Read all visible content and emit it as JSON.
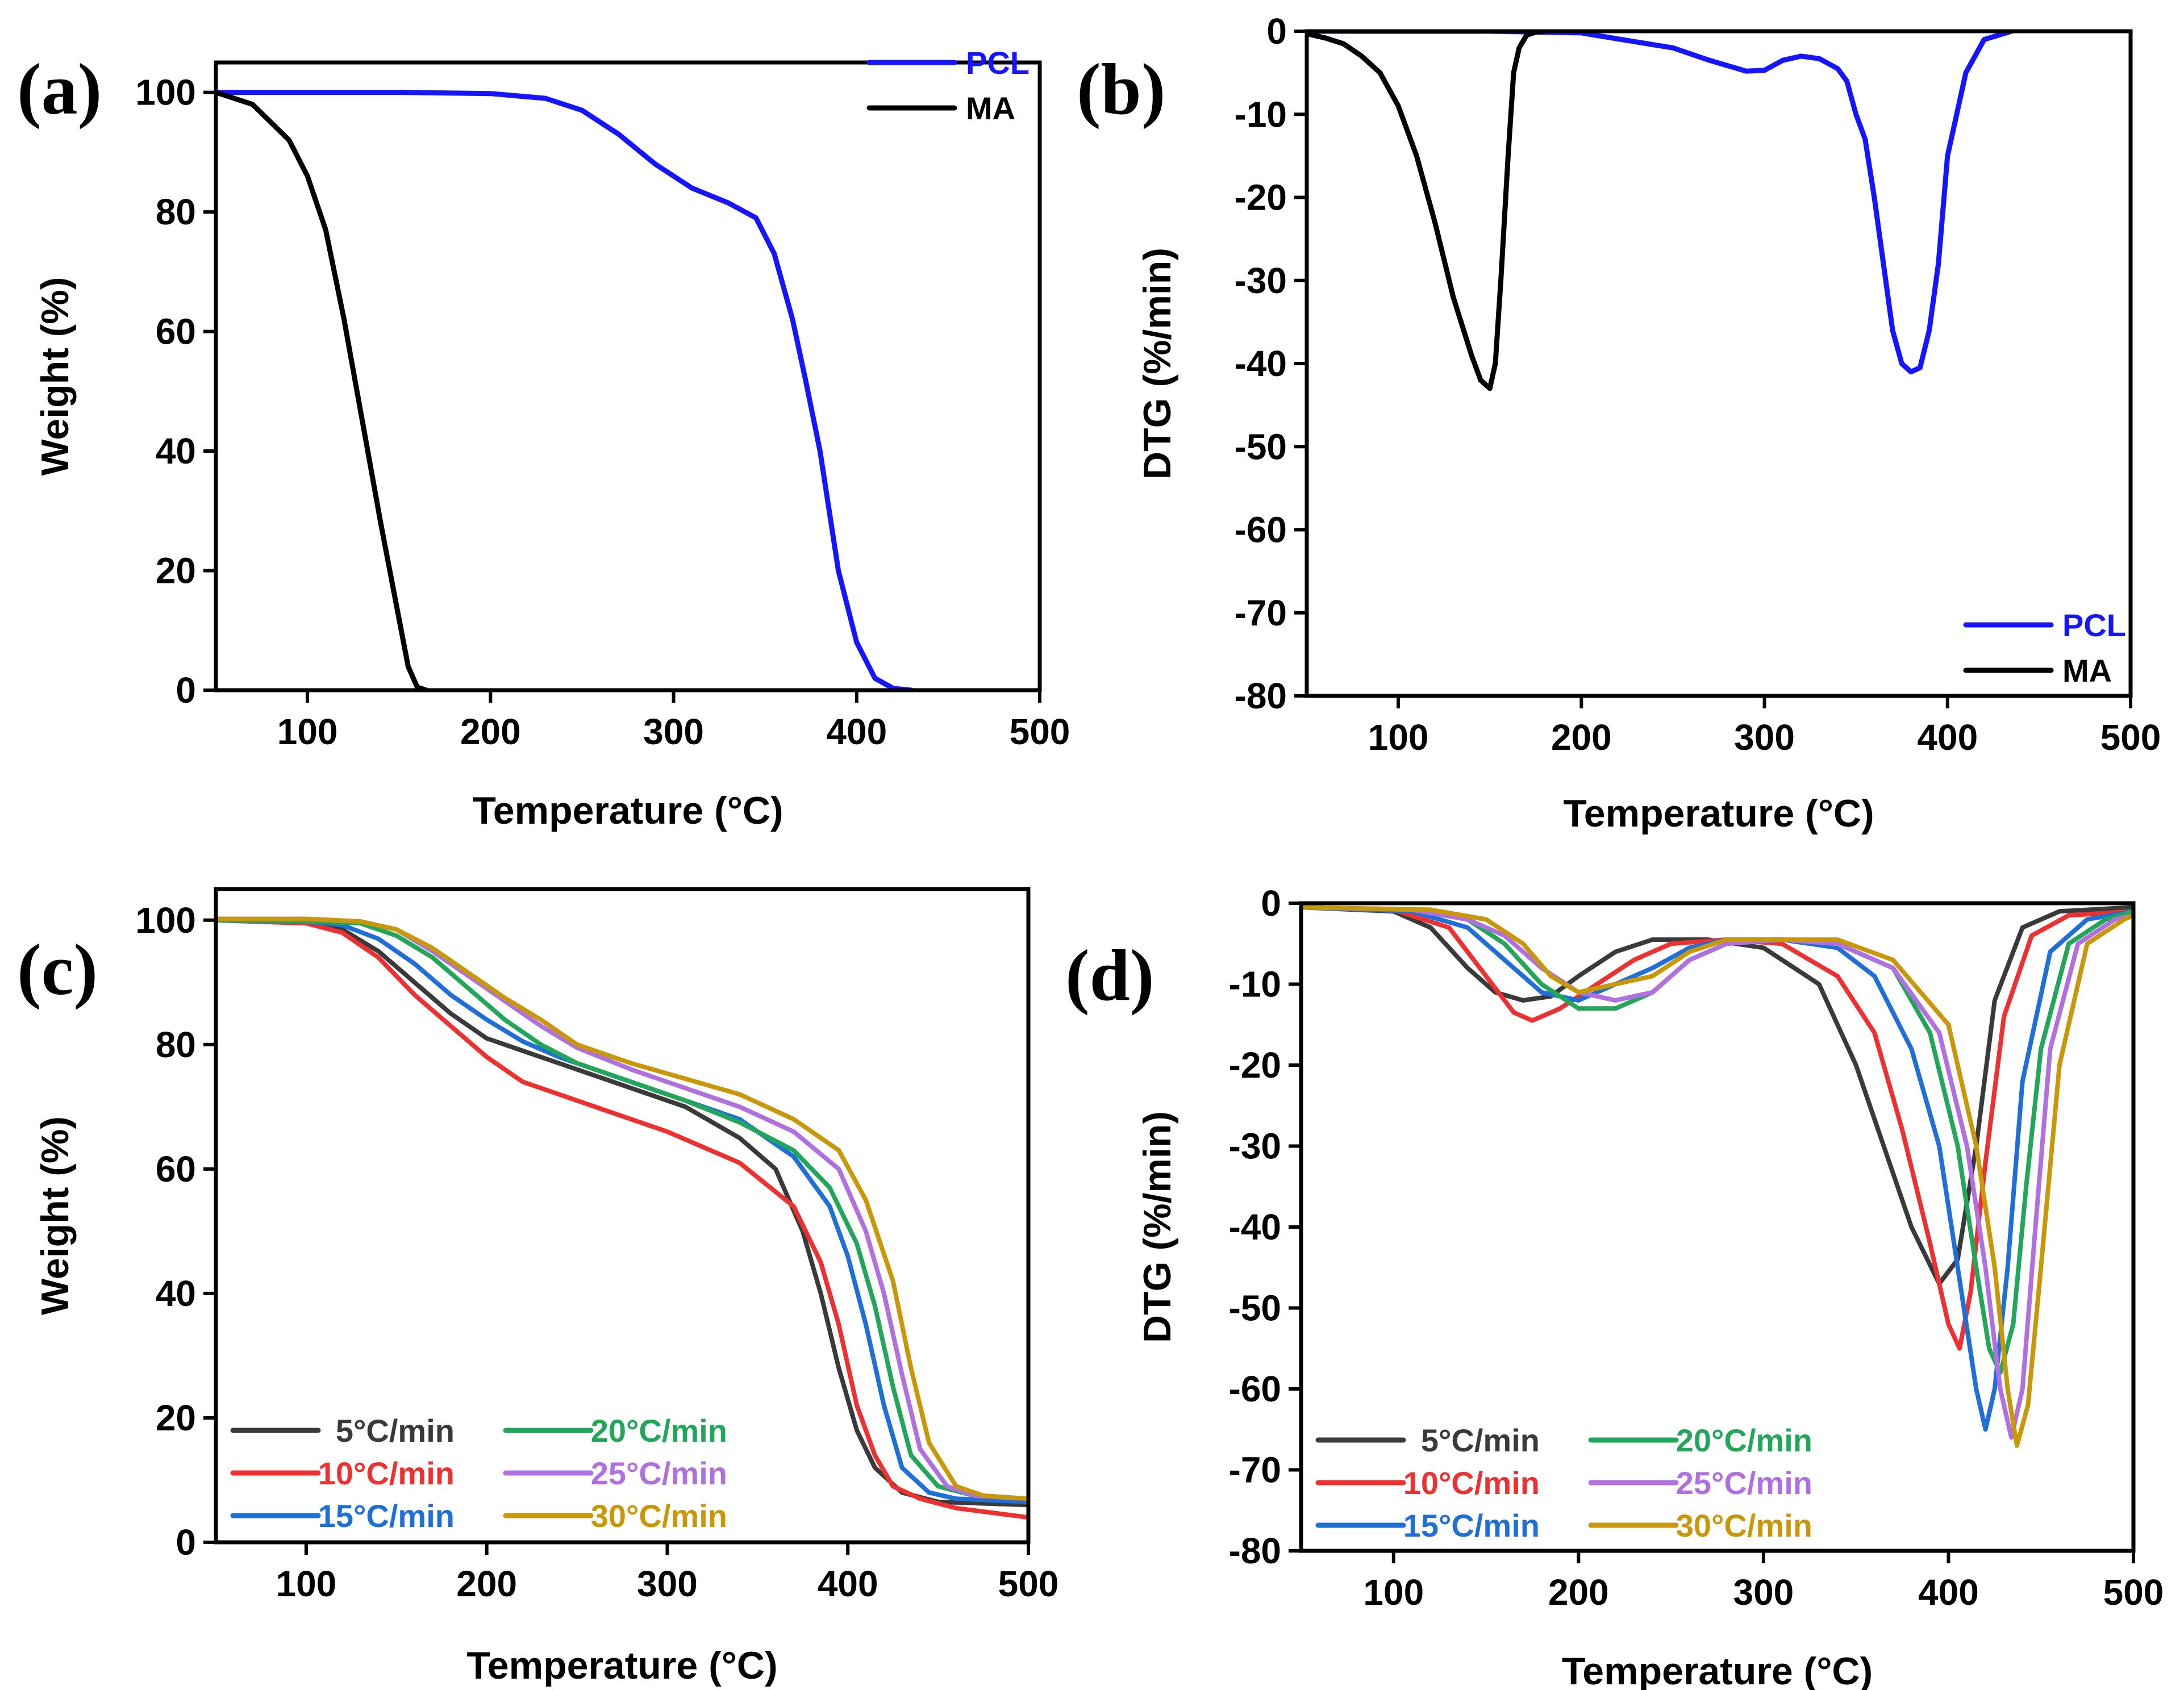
{
  "chart_data": [
    {
      "panel": "(a)",
      "type": "line",
      "xlabel": "Temperature (°C)",
      "ylabel": "Weight (%)",
      "xlim": [
        50,
        500
      ],
      "ylim": [
        0,
        105
      ],
      "xticks": [
        100,
        200,
        300,
        400,
        500
      ],
      "yticks": [
        0,
        20,
        40,
        60,
        80,
        100
      ],
      "legend_position": "top-right",
      "series": [
        {
          "name": "PCL",
          "color": "#1515ff",
          "x": [
            50,
            100,
            150,
            200,
            230,
            250,
            270,
            290,
            310,
            330,
            345,
            355,
            365,
            372,
            380,
            390,
            400,
            410,
            420,
            430
          ],
          "y": [
            100,
            100,
            100,
            99.8,
            99,
            97,
            93,
            88,
            84,
            81.5,
            79,
            73,
            62,
            52,
            40,
            20,
            8,
            2,
            0.3,
            0
          ]
        },
        {
          "name": "MA",
          "color": "#000000",
          "x": [
            50,
            70,
            90,
            100,
            110,
            120,
            130,
            140,
            150,
            155,
            160,
            165
          ],
          "y": [
            100,
            98,
            92,
            86,
            77,
            62,
            45,
            28,
            12,
            4,
            0.5,
            0
          ]
        }
      ]
    },
    {
      "panel": "(b)",
      "type": "line",
      "xlabel": "Temperature (°C)",
      "ylabel": "DTG (%/min)",
      "xlim": [
        50,
        500
      ],
      "ylim": [
        -80,
        0
      ],
      "xticks": [
        100,
        200,
        300,
        400,
        500
      ],
      "yticks": [
        0,
        -10,
        -20,
        -30,
        -40,
        -50,
        -60,
        -70,
        -80
      ],
      "legend_position": "bottom-right",
      "series": [
        {
          "name": "PCL",
          "color": "#1515ff",
          "x": [
            50,
            150,
            200,
            250,
            270,
            290,
            300,
            310,
            320,
            330,
            340,
            345,
            350,
            355,
            360,
            365,
            370,
            375,
            380,
            385,
            390,
            395,
            400,
            410,
            420,
            435
          ],
          "y": [
            0,
            0,
            -0.2,
            -2,
            -3.5,
            -4.8,
            -4.7,
            -3.5,
            -3,
            -3.3,
            -4.5,
            -6,
            -10,
            -13,
            -20,
            -28,
            -36,
            -40,
            -41,
            -40.5,
            -36,
            -28,
            -15,
            -5,
            -1,
            0
          ]
        },
        {
          "name": "MA",
          "color": "#000000",
          "x": [
            50,
            60,
            70,
            80,
            90,
            100,
            110,
            120,
            130,
            140,
            145,
            150,
            153,
            156,
            160,
            163,
            166,
            170,
            175,
            180
          ],
          "y": [
            -0.3,
            -0.8,
            -1.5,
            -3,
            -5,
            -9,
            -15,
            -23,
            -32,
            -39,
            -42,
            -43,
            -40,
            -30,
            -15,
            -5,
            -2,
            -0.5,
            -0.1,
            0
          ]
        }
      ]
    },
    {
      "panel": "(c)",
      "type": "line",
      "xlabel": "Temperature (°C)",
      "ylabel": "Weight (%)",
      "xlim": [
        50,
        500
      ],
      "ylim": [
        0,
        105
      ],
      "xticks": [
        100,
        200,
        300,
        400,
        500
      ],
      "yticks": [
        0,
        20,
        40,
        60,
        80,
        100
      ],
      "legend_position": "bottom-left",
      "series": [
        {
          "name": "5°C/min",
          "color": "#3a3a3a",
          "x": [
            50,
            100,
            120,
            140,
            160,
            180,
            200,
            220,
            250,
            280,
            310,
            340,
            360,
            375,
            385,
            395,
            405,
            415,
            430,
            450,
            500
          ],
          "y": [
            100,
            99.5,
            98.5,
            95,
            90,
            85,
            81,
            79,
            76,
            73,
            70,
            65,
            60,
            50,
            40,
            28,
            18,
            12,
            8,
            6.5,
            6
          ]
        },
        {
          "name": "10°C/min",
          "color": "#ee3030",
          "x": [
            50,
            100,
            120,
            140,
            160,
            180,
            200,
            220,
            240,
            260,
            300,
            340,
            370,
            385,
            395,
            405,
            415,
            425,
            440,
            460,
            500
          ],
          "y": [
            100,
            99.5,
            98,
            94,
            88,
            83,
            78,
            74,
            72,
            70,
            66,
            61,
            54,
            45,
            35,
            22,
            14,
            9,
            7,
            5.5,
            4
          ]
        },
        {
          "name": "15°C/min",
          "color": "#1f6fd8",
          "x": [
            50,
            100,
            120,
            140,
            160,
            180,
            200,
            220,
            240,
            260,
            300,
            340,
            370,
            390,
            400,
            410,
            420,
            430,
            445,
            460,
            500
          ],
          "y": [
            100,
            99.8,
            99.2,
            97,
            93,
            88,
            84,
            80.5,
            78,
            76,
            72,
            68,
            62,
            54,
            46,
            35,
            22,
            12,
            8,
            7,
            6.5
          ]
        },
        {
          "name": "20°C/min",
          "color": "#22a75a",
          "x": [
            50,
            100,
            130,
            150,
            170,
            190,
            210,
            230,
            250,
            280,
            310,
            340,
            370,
            390,
            405,
            415,
            425,
            435,
            450,
            470,
            500
          ],
          "y": [
            100,
            99.8,
            99.5,
            97.5,
            94,
            89,
            84,
            80,
            77,
            74,
            71,
            67.5,
            63,
            57,
            48,
            38,
            25,
            14,
            9,
            7.5,
            7
          ]
        },
        {
          "name": "25°C/min",
          "color": "#b070e0",
          "x": [
            50,
            100,
            130,
            150,
            170,
            190,
            210,
            230,
            250,
            280,
            310,
            340,
            370,
            395,
            410,
            420,
            430,
            440,
            455,
            470,
            500
          ],
          "y": [
            100.2,
            100.2,
            99.8,
            98.5,
            95,
            91,
            87,
            83,
            79.5,
            76,
            73,
            70,
            66,
            60,
            50,
            40,
            27,
            15,
            9,
            7.5,
            7
          ]
        },
        {
          "name": "30°C/min",
          "color": "#c9980a",
          "x": [
            50,
            100,
            130,
            150,
            170,
            190,
            210,
            230,
            250,
            280,
            310,
            340,
            370,
            395,
            410,
            425,
            435,
            445,
            460,
            475,
            500
          ],
          "y": [
            100.2,
            100.2,
            99.8,
            98.5,
            95.5,
            91.5,
            87.5,
            84,
            80,
            77,
            74.5,
            72,
            68,
            63,
            55,
            42,
            28,
            16,
            9,
            7.5,
            7
          ]
        }
      ]
    },
    {
      "panel": "(d)",
      "type": "line",
      "xlabel": "Temperature (°C)",
      "ylabel": "DTG (%/min)",
      "xlim": [
        50,
        500
      ],
      "ylim": [
        -80,
        0
      ],
      "xticks": [
        100,
        200,
        300,
        400,
        500
      ],
      "yticks": [
        0,
        -10,
        -20,
        -30,
        -40,
        -50,
        -60,
        -70,
        -80
      ],
      "legend_position": "bottom-left",
      "series": [
        {
          "name": "5°C/min",
          "color": "#3a3a3a",
          "x": [
            50,
            100,
            120,
            140,
            155,
            170,
            185,
            200,
            220,
            240,
            270,
            300,
            330,
            350,
            365,
            380,
            395,
            405,
            415,
            425,
            440,
            460,
            500
          ],
          "y": [
            -0.5,
            -1,
            -3,
            -8,
            -11,
            -12,
            -11.5,
            -9,
            -6,
            -4.5,
            -4.5,
            -5.5,
            -10,
            -20,
            -30,
            -40,
            -47,
            -44,
            -30,
            -12,
            -3,
            -1,
            -0.5
          ]
        },
        {
          "name": "10°C/min",
          "color": "#ee3030",
          "x": [
            50,
            100,
            130,
            150,
            165,
            175,
            190,
            210,
            230,
            250,
            280,
            310,
            340,
            360,
            375,
            390,
            400,
            406,
            412,
            420,
            430,
            445,
            465,
            500
          ],
          "y": [
            -0.5,
            -0.8,
            -3,
            -9,
            -13.5,
            -14.5,
            -13,
            -10,
            -7,
            -5,
            -4.5,
            -5,
            -9,
            -16,
            -28,
            -42,
            -52,
            -55,
            -48,
            -32,
            -14,
            -4,
            -1.5,
            -1
          ]
        },
        {
          "name": "15°C/min",
          "color": "#1f6fd8",
          "x": [
            50,
            110,
            140,
            160,
            180,
            200,
            220,
            240,
            260,
            280,
            310,
            340,
            360,
            380,
            395,
            405,
            415,
            420,
            425,
            432,
            440,
            455,
            475,
            500
          ],
          "y": [
            -0.5,
            -1,
            -3,
            -7,
            -11,
            -12,
            -10,
            -8,
            -5.5,
            -4.5,
            -4.5,
            -5.5,
            -9,
            -18,
            -30,
            -45,
            -60,
            -65,
            -60,
            -45,
            -22,
            -6,
            -2,
            -1
          ]
        },
        {
          "name": "20°C/min",
          "color": "#22a75a",
          "x": [
            50,
            110,
            140,
            160,
            180,
            200,
            220,
            240,
            260,
            280,
            310,
            340,
            370,
            390,
            405,
            415,
            422,
            428,
            435,
            442,
            450,
            465,
            485,
            500
          ],
          "y": [
            -0.5,
            -0.8,
            -2,
            -5,
            -10,
            -13,
            -13,
            -11,
            -7,
            -5,
            -4.5,
            -5,
            -8,
            -16,
            -30,
            -45,
            -55,
            -58,
            -52,
            -35,
            -18,
            -5,
            -2,
            -1
          ]
        },
        {
          "name": "25°C/min",
          "color": "#b070e0",
          "x": [
            50,
            110,
            140,
            160,
            180,
            200,
            220,
            240,
            260,
            280,
            310,
            340,
            370,
            395,
            410,
            420,
            428,
            434,
            440,
            447,
            455,
            470,
            490,
            500
          ],
          "y": [
            -0.5,
            -0.8,
            -2,
            -4,
            -8,
            -11,
            -12,
            -11,
            -7,
            -5,
            -4.5,
            -5,
            -8,
            -16,
            -30,
            -45,
            -60,
            -66,
            -60,
            -40,
            -18,
            -5,
            -2,
            -1.5
          ]
        },
        {
          "name": "30°C/min",
          "color": "#c9980a",
          "x": [
            50,
            120,
            150,
            170,
            185,
            200,
            220,
            240,
            260,
            280,
            310,
            340,
            370,
            400,
            415,
            425,
            432,
            437,
            443,
            450,
            460,
            475,
            495,
            500
          ],
          "y": [
            -0.5,
            -0.8,
            -2,
            -5,
            -9,
            -11,
            -10,
            -9,
            -6,
            -4.5,
            -4.5,
            -4.5,
            -7,
            -15,
            -30,
            -45,
            -60,
            -67,
            -62,
            -45,
            -20,
            -5,
            -2,
            -1.5
          ]
        }
      ]
    }
  ]
}
